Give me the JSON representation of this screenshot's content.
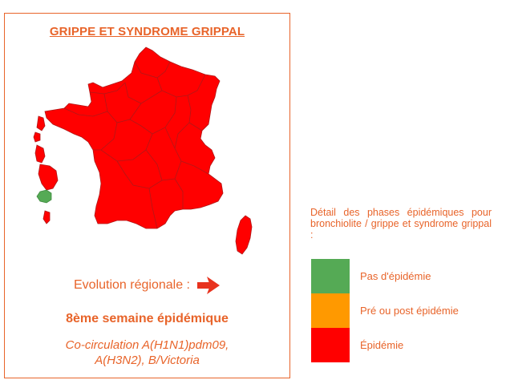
{
  "panel": {
    "title": "GRIPPE ET SYNDROME GRIPPAL",
    "evolution_label": "Evolution régionale :",
    "evolution_icon": "arrow-right-icon",
    "week_text": "8ème semaine épidémique",
    "cocirculation_line1": "Co-circulation A(H1N1)pdm09,",
    "cocirculation_line2": "A(H3N2), B/Victoria"
  },
  "map": {
    "regions": [
      {
        "name": "Métropole",
        "phase": "Épidémie"
      },
      {
        "name": "Corse",
        "phase": "Épidémie"
      },
      {
        "name": "Guadeloupe",
        "phase": "Épidémie"
      },
      {
        "name": "Martinique",
        "phase": "Épidémie"
      },
      {
        "name": "Guyane",
        "phase": "Épidémie"
      },
      {
        "name": "La Réunion",
        "phase": "Pas d'épidémie"
      },
      {
        "name": "Mayotte",
        "phase": "Épidémie"
      }
    ]
  },
  "legend": {
    "title": "Détail des phases épidémiques pour bronchiolite / grippe et syndrome grippal :",
    "items": [
      {
        "label": "Pas d'épidémie",
        "color": "#55aa55"
      },
      {
        "label": "Pré ou post épidémie",
        "color": "#ff9900"
      },
      {
        "label": "Épidémie",
        "color": "#ff0000"
      }
    ]
  },
  "colors": {
    "accent": "#e8642a",
    "epidemic": "#ff0000",
    "no_epidemic": "#55aa55",
    "border": "#b01818"
  }
}
